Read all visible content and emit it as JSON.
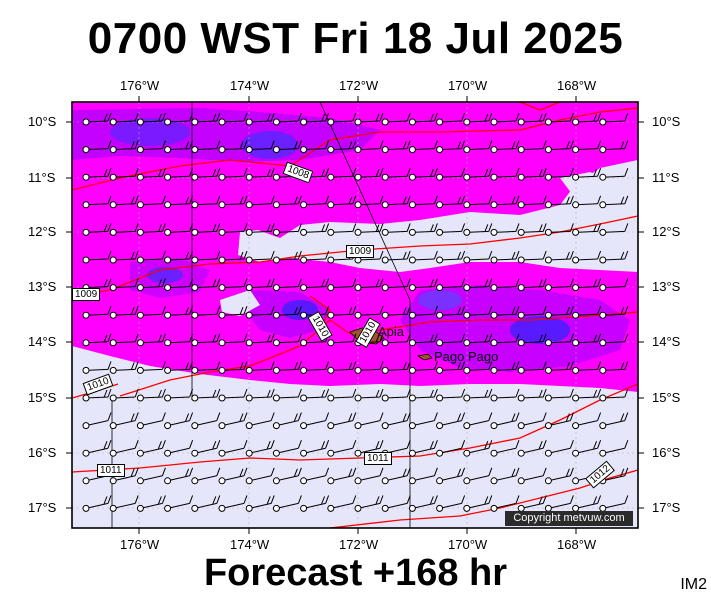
{
  "title": "0700 WST Fri 18 Jul 2025",
  "footer": "Forecast +168 hr",
  "product_code": "IM2",
  "copyright": "Copyright metvuw.com",
  "longitude_labels": [
    "176°W",
    "174°W",
    "172°W",
    "170°W",
    "168°W"
  ],
  "latitude_labels": [
    "10°S",
    "11°S",
    "12°S",
    "13°S",
    "14°S",
    "15°S",
    "16°S",
    "17°S"
  ],
  "isobar_labels": [
    "1008",
    "1009",
    "1009",
    "1010",
    "1010",
    "1010",
    "1011",
    "1011",
    "1012"
  ],
  "places": [
    "Apia",
    "Pago Pago"
  ],
  "colors": {
    "magenta": "#ff00ff",
    "purple": "#a000ff",
    "blue": "#5a1aff",
    "pale": "#e6e6fa",
    "isobar": "#ff0000"
  }
}
